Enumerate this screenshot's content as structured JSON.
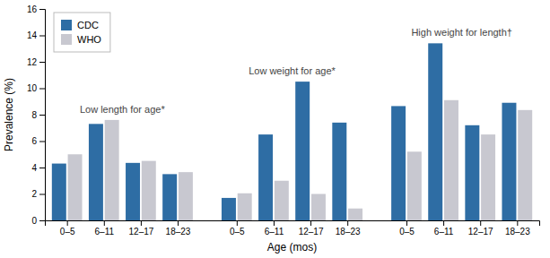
{
  "chart_data": {
    "type": "bar",
    "x_label": "Age (mos)",
    "y_label": "Prevalence (%)",
    "categories": [
      "0–5",
      "6–11",
      "12–17",
      "18–23",
      "0–5",
      "6–11",
      "12–17",
      "18–23",
      "0–5",
      "6–11",
      "12–17",
      "18–23"
    ],
    "series": [
      {
        "name": "CDC",
        "color": "#2E6DA4",
        "values": [
          4.3,
          7.3,
          4.35,
          3.5,
          1.7,
          6.5,
          10.5,
          7.4,
          8.65,
          13.4,
          7.2,
          8.9
        ]
      },
      {
        "name": "WHO",
        "color": "#C8C8D0",
        "values": [
          5.0,
          7.6,
          4.5,
          3.65,
          2.05,
          3.0,
          2.0,
          0.9,
          5.2,
          9.1,
          6.5,
          8.35
        ]
      }
    ],
    "annotations": [
      "Low length for age*",
      "Low weight for age*",
      "High weight for length†"
    ],
    "ylim": [
      0,
      16
    ],
    "yticks": [
      0,
      2,
      4,
      6,
      8,
      10,
      12,
      14,
      16
    ],
    "grid": false,
    "legend": "upper left"
  }
}
